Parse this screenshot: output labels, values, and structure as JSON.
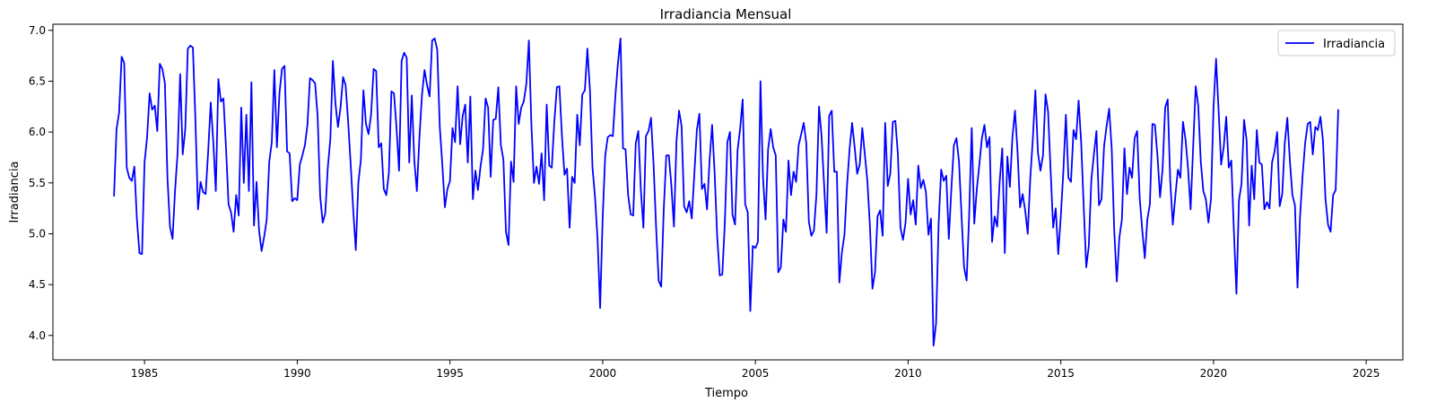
{
  "chart_data": {
    "type": "line",
    "title": "Irradiancia Mensual",
    "xlabel": "Tiempo",
    "ylabel": "Irradiancia",
    "xlim": [
      1982.0,
      2026.2
    ],
    "ylim": [
      3.76,
      7.06
    ],
    "x_ticks": [
      1985,
      1990,
      1995,
      2000,
      2005,
      2010,
      2015,
      2020,
      2025
    ],
    "y_ticks": [
      4.0,
      4.5,
      5.0,
      5.5,
      6.0,
      6.5,
      7.0
    ],
    "x_tick_labels": [
      "1985",
      "1990",
      "1995",
      "2000",
      "2005",
      "2010",
      "2015",
      "2020",
      "2025"
    ],
    "y_tick_labels": [
      "4.0",
      "4.5",
      "5.0",
      "5.5",
      "6.0",
      "6.5",
      "7.0"
    ],
    "legend": {
      "position": "top-right",
      "entries": [
        "Irradiancia"
      ]
    },
    "grid": false,
    "series": [
      {
        "name": "Irradiancia",
        "color": "#0000ff",
        "x_start": 1984.0,
        "x_step_months": 1,
        "values": [
          5.37,
          6.03,
          6.19,
          6.74,
          6.68,
          5.65,
          5.55,
          5.52,
          5.66,
          5.14,
          4.81,
          4.8,
          5.7,
          5.95,
          6.38,
          6.22,
          6.26,
          6.01,
          6.67,
          6.62,
          6.48,
          5.55,
          5.07,
          4.95,
          5.43,
          5.8,
          6.57,
          5.78,
          6.03,
          6.82,
          6.85,
          6.83,
          6.11,
          5.24,
          5.51,
          5.41,
          5.39,
          5.81,
          6.29,
          5.91,
          5.42,
          6.52,
          6.3,
          6.33,
          5.85,
          5.29,
          5.21,
          5.02,
          5.38,
          5.18,
          6.24,
          5.5,
          6.17,
          5.42,
          6.49,
          5.08,
          5.51,
          5.03,
          4.83,
          4.97,
          5.14,
          5.71,
          5.9,
          6.61,
          5.85,
          6.38,
          6.62,
          6.65,
          5.81,
          5.79,
          5.32,
          5.35,
          5.33,
          5.68,
          5.77,
          5.87,
          6.07,
          6.53,
          6.51,
          6.48,
          6.16,
          5.37,
          5.11,
          5.2,
          5.65,
          5.93,
          6.7,
          6.28,
          6.05,
          6.24,
          6.54,
          6.46,
          6.1,
          5.68,
          5.23,
          4.84,
          5.5,
          5.73,
          6.41,
          6.08,
          5.98,
          6.17,
          6.62,
          6.6,
          5.85,
          5.89,
          5.44,
          5.38,
          5.6,
          6.4,
          6.38,
          6.04,
          5.62,
          6.7,
          6.78,
          6.73,
          5.7,
          6.36,
          5.72,
          5.42,
          5.95,
          6.36,
          6.61,
          6.46,
          6.35,
          6.9,
          6.92,
          6.81,
          6.05,
          5.68,
          5.26,
          5.44,
          5.52,
          6.04,
          5.9,
          6.45,
          5.88,
          6.16,
          6.27,
          5.7,
          6.35,
          5.34,
          5.62,
          5.43,
          5.66,
          5.83,
          6.33,
          6.24,
          5.56,
          6.12,
          6.13,
          6.44,
          5.87,
          5.73,
          5.02,
          4.89,
          5.71,
          5.51,
          6.45,
          6.08,
          6.24,
          6.3,
          6.47,
          6.9,
          6.07,
          5.5,
          5.66,
          5.49,
          5.79,
          5.33,
          6.27,
          5.67,
          5.65,
          6.1,
          6.44,
          6.45,
          5.96,
          5.58,
          5.64,
          5.06,
          5.56,
          5.5,
          6.17,
          5.87,
          6.37,
          6.41,
          6.82,
          6.41,
          5.65,
          5.36,
          4.94,
          4.27,
          5.16,
          5.77,
          5.95,
          5.97,
          5.96,
          6.36,
          6.68,
          6.92,
          5.84,
          5.83,
          5.38,
          5.19,
          5.18,
          5.89,
          6.01,
          5.43,
          5.06,
          5.96,
          6.01,
          6.14,
          5.68,
          5.06,
          4.54,
          4.48,
          5.24,
          5.77,
          5.77,
          5.47,
          5.07,
          5.91,
          6.21,
          6.06,
          5.27,
          5.21,
          5.32,
          5.15,
          5.58,
          6.02,
          6.18,
          5.44,
          5.49,
          5.24,
          5.72,
          6.07,
          5.59,
          4.97,
          4.59,
          4.6,
          5.11,
          5.9,
          6.0,
          5.19,
          5.09,
          5.82,
          6.03,
          6.32,
          5.29,
          5.21,
          4.24,
          4.88,
          4.86,
          4.92,
          6.5,
          5.55,
          5.14,
          5.83,
          6.03,
          5.85,
          5.77,
          4.62,
          4.67,
          5.14,
          5.02,
          5.72,
          5.38,
          5.61,
          5.51,
          5.87,
          5.98,
          6.09,
          5.89,
          5.12,
          4.98,
          5.03,
          5.39,
          6.25,
          5.96,
          5.48,
          5.01,
          6.16,
          6.21,
          5.61,
          5.61,
          4.52,
          4.82,
          4.99,
          5.47,
          5.83,
          6.09,
          5.85,
          5.59,
          5.68,
          6.04,
          5.78,
          5.52,
          5.08,
          4.46,
          4.62,
          5.17,
          5.23,
          4.98,
          6.09,
          5.47,
          5.59,
          6.1,
          6.11,
          5.78,
          5.06,
          4.94,
          5.11,
          5.54,
          5.19,
          5.33,
          5.09,
          5.67,
          5.45,
          5.53,
          5.41,
          4.99,
          5.15,
          3.9,
          4.12,
          5.1,
          5.63,
          5.52,
          5.57,
          4.95,
          5.44,
          5.87,
          5.94,
          5.71,
          5.18,
          4.67,
          4.54,
          5.19,
          6.04,
          5.1,
          5.44,
          5.68,
          5.94,
          6.07,
          5.85,
          5.95,
          4.92,
          5.17,
          5.07,
          5.52,
          5.84,
          4.81,
          5.76,
          5.46,
          5.95,
          6.21,
          5.81,
          5.26,
          5.39,
          5.23,
          5.0,
          5.54,
          5.93,
          6.41,
          5.8,
          5.62,
          5.77,
          6.37,
          6.2,
          5.62,
          5.06,
          5.25,
          4.8,
          5.17,
          5.61,
          6.17,
          5.55,
          5.51,
          6.02,
          5.93,
          6.31,
          5.9,
          5.27,
          4.67,
          4.88,
          5.53,
          5.78,
          6.01,
          5.28,
          5.34,
          5.86,
          6.06,
          6.23,
          5.84,
          5.03,
          4.53,
          4.96,
          5.14,
          5.84,
          5.39,
          5.65,
          5.55,
          5.94,
          6.01,
          5.35,
          5.04,
          4.76,
          5.14,
          5.29,
          6.08,
          6.07,
          5.76,
          5.36,
          5.64,
          6.24,
          6.32,
          5.52,
          5.09,
          5.37,
          5.63,
          5.55,
          6.1,
          5.93,
          5.64,
          5.24,
          5.85,
          6.45,
          6.26,
          5.71,
          5.42,
          5.34,
          5.11,
          5.34,
          6.24,
          6.72,
          6.21,
          5.68,
          5.85,
          6.15,
          5.65,
          5.72,
          5.03,
          4.41,
          5.33,
          5.49,
          6.12,
          5.92,
          5.08,
          5.67,
          5.34,
          6.02,
          5.7,
          5.68,
          5.24,
          5.31,
          5.25,
          5.7,
          5.81,
          6.0,
          5.27,
          5.39,
          5.89,
          6.14,
          5.72,
          5.38,
          5.28,
          4.47,
          5.17,
          5.57,
          5.89,
          6.08,
          6.1,
          5.78,
          6.05,
          6.02,
          6.15,
          5.92,
          5.34,
          5.09,
          5.02,
          5.38,
          5.43,
          6.22
        ]
      }
    ]
  }
}
